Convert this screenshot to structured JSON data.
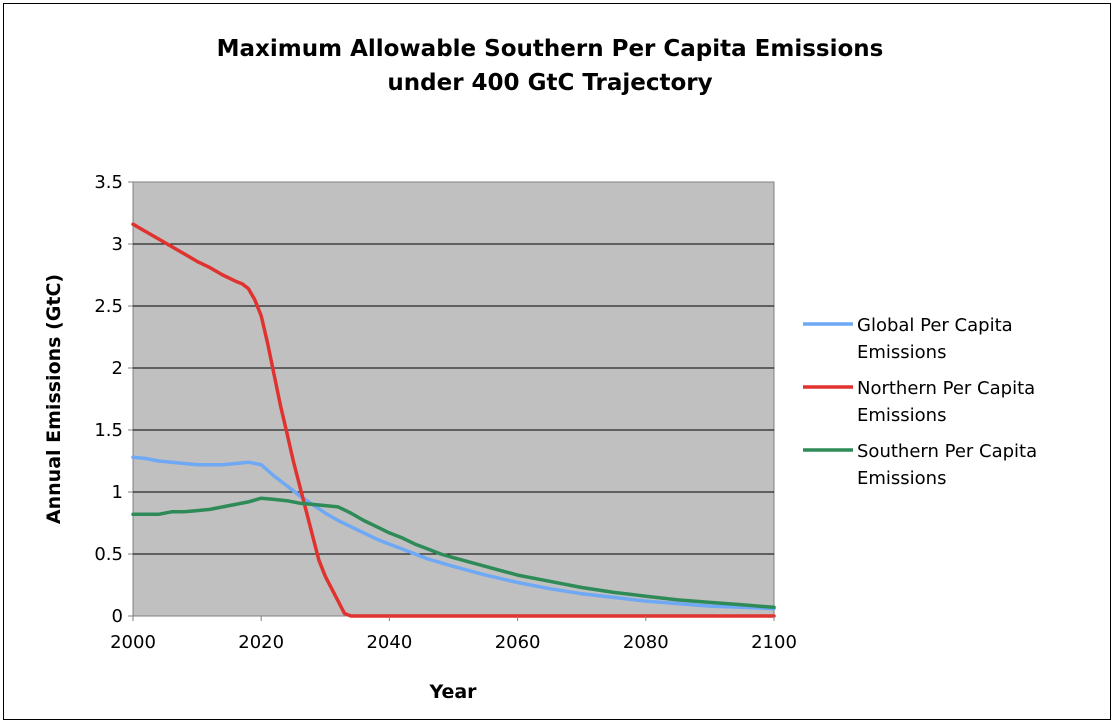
{
  "chart_data": {
    "type": "line",
    "title": [
      "Maximum Allowable Southern Per Capita Emissions",
      "under 400 GtC Trajectory"
    ],
    "xlabel": "Year",
    "ylabel": "Annual Emissions (GtC)",
    "xlim": [
      2000,
      2100
    ],
    "ylim": [
      0,
      3.5
    ],
    "xticks": [
      "2000",
      "2020",
      "2040",
      "2060",
      "2080",
      "2100"
    ],
    "yticks": [
      "0",
      "0.5",
      "1",
      "1.5",
      "2",
      "2.5",
      "3",
      "3.5"
    ],
    "grid": true,
    "plot_background": "#c0c0c0",
    "legend_position": "right",
    "series": [
      {
        "name": [
          "Global Per Capita",
          "Emissions"
        ],
        "color": "#6fa8f5",
        "x": [
          2000,
          2002,
          2004,
          2006,
          2008,
          2010,
          2012,
          2014,
          2016,
          2018,
          2020,
          2022,
          2024,
          2026,
          2028,
          2030,
          2032,
          2034,
          2036,
          2038,
          2040,
          2042,
          2044,
          2046,
          2048,
          2050,
          2055,
          2060,
          2065,
          2070,
          2075,
          2080,
          2085,
          2090,
          2095,
          2100
        ],
        "y": [
          1.28,
          1.27,
          1.25,
          1.24,
          1.23,
          1.22,
          1.22,
          1.22,
          1.23,
          1.24,
          1.22,
          1.13,
          1.05,
          0.97,
          0.9,
          0.83,
          0.77,
          0.72,
          0.67,
          0.62,
          0.58,
          0.54,
          0.5,
          0.46,
          0.43,
          0.4,
          0.33,
          0.27,
          0.22,
          0.18,
          0.15,
          0.12,
          0.1,
          0.08,
          0.07,
          0.06
        ]
      },
      {
        "name": [
          "Northern Per Capita",
          "Emissions"
        ],
        "color": "#e0322e",
        "x": [
          2000,
          2002,
          2004,
          2006,
          2008,
          2010,
          2012,
          2014,
          2016,
          2017,
          2018,
          2019,
          2020,
          2021,
          2022,
          2023,
          2024,
          2025,
          2026,
          2027,
          2028,
          2029,
          2030,
          2031,
          2032,
          2033,
          2034,
          2040,
          2060,
          2080,
          2100
        ],
        "y": [
          3.16,
          3.1,
          3.04,
          2.98,
          2.92,
          2.86,
          2.81,
          2.75,
          2.7,
          2.68,
          2.64,
          2.55,
          2.42,
          2.2,
          1.95,
          1.7,
          1.48,
          1.25,
          1.05,
          0.85,
          0.65,
          0.45,
          0.32,
          0.22,
          0.12,
          0.02,
          0.0,
          0.0,
          0.0,
          0.0,
          0.0
        ]
      },
      {
        "name": [
          "Southern Per Capita",
          "Emissions"
        ],
        "color": "#2e8b57",
        "x": [
          2000,
          2004,
          2006,
          2008,
          2010,
          2012,
          2014,
          2016,
          2018,
          2020,
          2022,
          2024,
          2026,
          2028,
          2030,
          2032,
          2034,
          2036,
          2038,
          2040,
          2042,
          2044,
          2046,
          2048,
          2050,
          2055,
          2060,
          2065,
          2070,
          2075,
          2080,
          2085,
          2090,
          2095,
          2100
        ],
        "y": [
          0.82,
          0.82,
          0.84,
          0.84,
          0.85,
          0.86,
          0.88,
          0.9,
          0.92,
          0.95,
          0.94,
          0.93,
          0.91,
          0.9,
          0.89,
          0.88,
          0.83,
          0.77,
          0.72,
          0.67,
          0.63,
          0.58,
          0.54,
          0.5,
          0.47,
          0.4,
          0.33,
          0.28,
          0.23,
          0.19,
          0.16,
          0.13,
          0.11,
          0.09,
          0.07
        ]
      }
    ]
  }
}
